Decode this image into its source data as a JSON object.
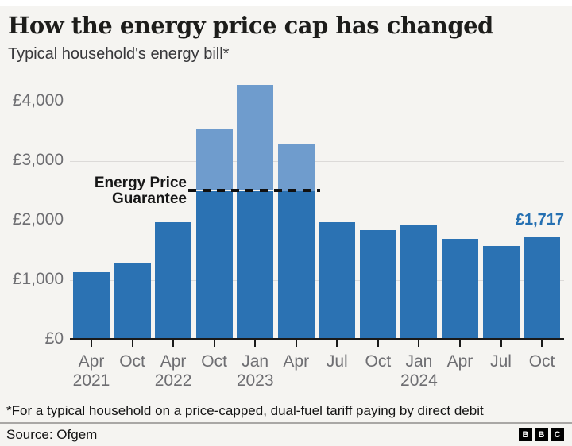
{
  "chart_data": {
    "type": "bar",
    "title": "How the energy price cap has changed",
    "subtitle": "Typical household's energy bill*",
    "categories": [
      "Apr 2021",
      "Oct 2021",
      "Apr 2022",
      "Oct 2022",
      "Jan 2023",
      "Apr 2023",
      "Jul 2023",
      "Oct 2023",
      "Jan 2024",
      "Apr 2024",
      "Jul 2024",
      "Oct 2024"
    ],
    "values": [
      1138,
      1277,
      1971,
      3549,
      4279,
      3280,
      1976,
      1834,
      1928,
      1690,
      1568,
      1717
    ],
    "x_tick_months": [
      "Apr",
      "Oct",
      "Apr",
      "Oct",
      "Jan",
      "Apr",
      "Jul",
      "Oct",
      "Jan",
      "Apr",
      "Jul",
      "Oct"
    ],
    "x_tick_years": [
      "2021",
      "",
      "2022",
      "",
      "2023",
      "",
      "",
      "",
      "2024",
      "",
      "",
      ""
    ],
    "y_ticks": {
      "values": [
        0,
        1000,
        2000,
        3000,
        4000
      ],
      "labels": [
        "£0",
        "£1,000",
        "£2,000",
        "£3,000",
        "£4,000"
      ]
    },
    "ylim": [
      0,
      4500
    ],
    "grid": "horizontal",
    "legend": "none",
    "epg": {
      "line1": "Energy Price",
      "line2": "Guarantee",
      "value": 2500
    },
    "last_value_label": "£1,717",
    "colors": {
      "bar": "#2b72b3",
      "bar_above_guarantee": "#6f9ccd",
      "callout_text": "#2570b2",
      "dashed_line": "#111111",
      "axis_text": "#6e6e72",
      "background": "#f5f4f1"
    }
  },
  "footer": {
    "footnote": "*For a typical household on a price-capped, dual-fuel tariff paying by direct debit",
    "source": "Source: Ofgem",
    "logo_letters": [
      "B",
      "B",
      "C"
    ]
  }
}
